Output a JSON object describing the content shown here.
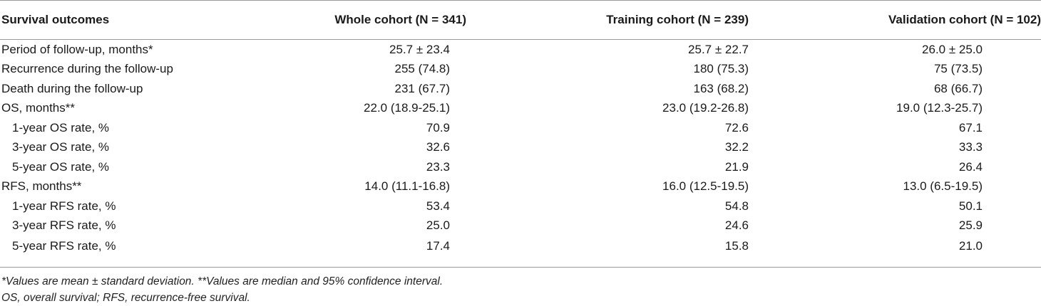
{
  "table": {
    "headers": [
      "Survival outcomes",
      "Whole cohort (N = 341)",
      "Training cohort (N = 239)",
      "Validation cohort (N = 102)"
    ],
    "rows": [
      {
        "label": "Period of follow-up, months*",
        "indent": false,
        "values": [
          "25.7 ± 23.4",
          "25.7 ± 22.7",
          "26.0 ± 25.0"
        ]
      },
      {
        "label": "Recurrence during the follow-up",
        "indent": false,
        "values": [
          "255 (74.8)",
          "180 (75.3)",
          "75 (73.5)"
        ]
      },
      {
        "label": "Death during the follow-up",
        "indent": false,
        "values": [
          "231 (67.7)",
          "163 (68.2)",
          "68 (66.7)"
        ]
      },
      {
        "label": "OS, months**",
        "indent": false,
        "values": [
          "22.0 (18.9-25.1)",
          "23.0 (19.2-26.8)",
          "19.0 (12.3-25.7)"
        ]
      },
      {
        "label": "1-year OS rate, %",
        "indent": true,
        "values": [
          "70.9",
          "72.6",
          "67.1"
        ]
      },
      {
        "label": "3-year OS rate, %",
        "indent": true,
        "values": [
          "32.6",
          "32.2",
          "33.3"
        ]
      },
      {
        "label": "5-year OS rate, %",
        "indent": true,
        "values": [
          "23.3",
          "21.9",
          "26.4"
        ]
      },
      {
        "label": "RFS, months**",
        "indent": false,
        "values": [
          "14.0 (11.1-16.8)",
          "16.0 (12.5-19.5)",
          "13.0 (6.5-19.5)"
        ]
      },
      {
        "label": "1-year RFS rate, %",
        "indent": true,
        "values": [
          "53.4",
          "54.8",
          "50.1"
        ]
      },
      {
        "label": "3-year RFS rate, %",
        "indent": true,
        "values": [
          "25.0",
          "24.6",
          "25.9"
        ]
      },
      {
        "label": "5-year RFS rate, %",
        "indent": true,
        "values": [
          "17.4",
          "15.8",
          "21.0"
        ]
      }
    ]
  },
  "footnotes": {
    "line1": "*Values are mean ± standard deviation. **Values are median and 95% confidence interval.",
    "line2": "OS, overall survival; RFS, recurrence-free survival."
  }
}
